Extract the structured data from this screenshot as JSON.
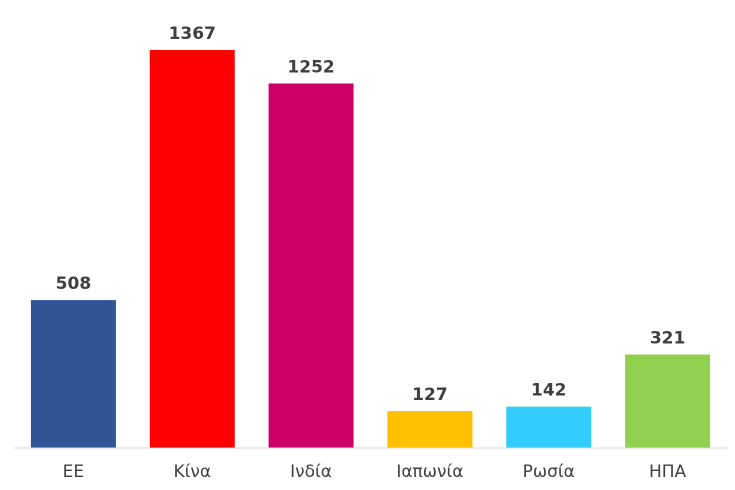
{
  "chart_data": {
    "type": "bar",
    "categories": [
      "ΕΕ",
      "Κίνα",
      "Ινδία",
      "Ιαπωνία",
      "Ρωσία",
      "ΗΠΑ"
    ],
    "values": [
      508,
      1367,
      1252,
      127,
      142,
      321
    ],
    "colors": [
      "#2f5597",
      "#ff0000",
      "#cc0066",
      "#ffc000",
      "#33ccff",
      "#92d050"
    ],
    "ylim": [
      0,
      1470
    ],
    "grid": false,
    "legend": "none",
    "data_labels": true
  }
}
